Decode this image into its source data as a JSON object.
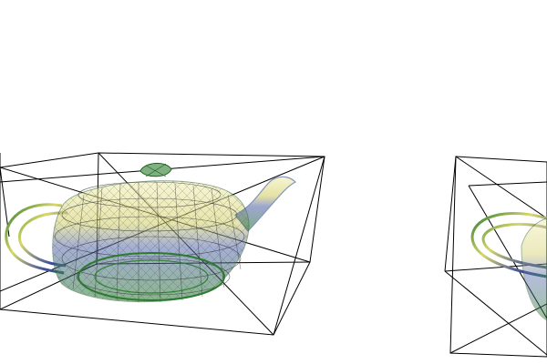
{
  "scene": {
    "background": "#ffffff",
    "bbox_color": "#000000",
    "mesh_colors": {
      "top": "#f2f0a0",
      "mid": "#d9d86a",
      "deep": "#3b4aa0",
      "bottom": "#2f7a2f"
    },
    "objects": [
      {
        "name": "teapot-left",
        "icon": "teapot-wireframe"
      },
      {
        "name": "teapot-right",
        "icon": "teapot-wireframe"
      }
    ]
  }
}
